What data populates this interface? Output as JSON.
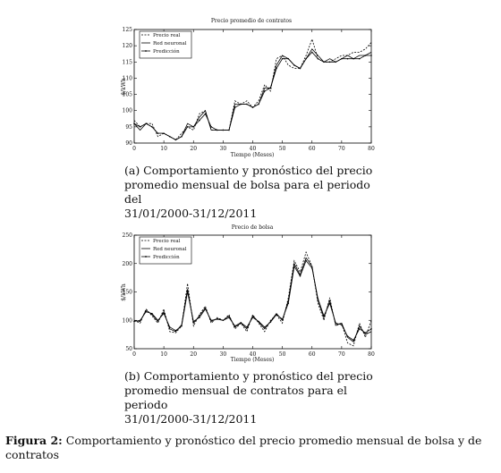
{
  "chart_data": [
    {
      "type": "line",
      "title": "Precio promedio de contratos",
      "xlabel": "Tiempo (Meses)",
      "ylabel": "$/kWh",
      "xlim": [
        0,
        80
      ],
      "ylim": [
        90,
        125
      ],
      "xticks": [
        0,
        10,
        20,
        30,
        40,
        50,
        60,
        70,
        80
      ],
      "yticks": [
        90,
        95,
        100,
        105,
        110,
        115,
        120,
        125
      ],
      "legend_position": "top-left",
      "x": [
        0,
        2,
        4,
        6,
        8,
        10,
        12,
        14,
        16,
        18,
        20,
        22,
        24,
        26,
        28,
        30,
        32,
        34,
        36,
        38,
        40,
        42,
        44,
        46,
        48,
        50,
        52,
        54,
        56,
        58,
        60,
        62,
        64,
        66,
        68,
        70,
        72,
        74,
        76,
        78,
        80
      ],
      "series": [
        {
          "name": "Precio real",
          "style": "dashed",
          "values": [
            97,
            95,
            96,
            96,
            92,
            93,
            92,
            91,
            93,
            95,
            94,
            99,
            100,
            94,
            94,
            94,
            94,
            103,
            102,
            103,
            101,
            103,
            108,
            106,
            116,
            117,
            114,
            113,
            113,
            117,
            122,
            116,
            115,
            115,
            116,
            117,
            117,
            118,
            118,
            119,
            121
          ]
        },
        {
          "name": "Red neuronal",
          "style": "solid",
          "values": [
            96,
            94,
            96,
            95,
            93,
            93,
            92,
            91,
            92,
            96,
            95,
            98,
            100,
            94,
            94,
            94,
            94,
            102,
            102,
            102,
            101,
            102,
            107,
            107,
            114,
            117,
            116,
            114,
            113,
            116,
            119,
            117,
            115,
            116,
            115,
            116,
            117,
            116,
            117,
            117,
            118
          ]
        },
        {
          "name": "Predicción",
          "style": "solid-marker",
          "values": [
            96,
            95,
            96,
            95,
            93,
            93,
            92,
            91,
            92,
            95,
            95,
            97,
            99,
            95,
            94,
            94,
            94,
            101,
            102,
            102,
            101,
            102,
            106,
            107,
            113,
            116,
            116,
            114,
            113,
            116,
            118,
            116,
            115,
            115,
            115,
            116,
            116,
            116,
            116,
            117,
            117
          ]
        }
      ]
    },
    {
      "type": "line",
      "title": "Precio de bolsa",
      "xlabel": "Tiempo (Meses)",
      "ylabel": "$/kWh",
      "xlim": [
        0,
        80
      ],
      "ylim": [
        50,
        250
      ],
      "xticks": [
        0,
        10,
        20,
        30,
        40,
        50,
        60,
        70,
        80
      ],
      "yticks": [
        50,
        100,
        150,
        200,
        250
      ],
      "legend_position": "top-left",
      "x": [
        0,
        2,
        4,
        6,
        8,
        10,
        12,
        14,
        16,
        18,
        20,
        22,
        24,
        26,
        28,
        30,
        32,
        34,
        36,
        38,
        40,
        42,
        44,
        46,
        48,
        50,
        52,
        54,
        56,
        58,
        60,
        62,
        64,
        66,
        68,
        70,
        72,
        74,
        76,
        78,
        80
      ],
      "series": [
        {
          "name": "Precio real",
          "style": "dashed",
          "values": [
            100,
            95,
            120,
            108,
            95,
            120,
            80,
            78,
            90,
            165,
            90,
            110,
            125,
            95,
            105,
            100,
            110,
            85,
            95,
            80,
            110,
            95,
            80,
            100,
            110,
            95,
            140,
            205,
            185,
            220,
            195,
            130,
            100,
            140,
            90,
            95,
            60,
            55,
            95,
            70,
            100
          ]
        },
        {
          "name": "Red neuronal",
          "style": "solid",
          "values": [
            100,
            98,
            118,
            110,
            98,
            115,
            85,
            80,
            92,
            155,
            95,
            108,
            122,
            98,
            103,
            100,
            108,
            88,
            95,
            85,
            108,
            97,
            85,
            98,
            112,
            100,
            135,
            200,
            180,
            210,
            195,
            135,
            105,
            135,
            92,
            95,
            70,
            62,
            90,
            75,
            80
          ]
        },
        {
          "name": "Predicción",
          "style": "solid-marker",
          "values": [
            98,
            100,
            115,
            112,
            100,
            112,
            88,
            82,
            90,
            150,
            98,
            105,
            120,
            100,
            102,
            100,
            105,
            90,
            96,
            88,
            105,
            98,
            88,
            97,
            110,
            102,
            130,
            195,
            178,
            205,
            192,
            138,
            108,
            130,
            95,
            92,
            72,
            65,
            85,
            78,
            85
          ]
        }
      ]
    }
  ],
  "captions": {
    "a": [
      "(a) Comportamiento y pronóstico del precio",
      "promedio mensual de bolsa para el periodo del",
      "31/01/2000-31/12/2011"
    ],
    "b": [
      "(b) Comportamiento y pronóstico del precio",
      "promedio mensual de contratos para el periodo",
      "31/01/2000-31/12/2011"
    ]
  },
  "figure_caption": {
    "label": "Figura 2:",
    "text": " Comportamiento y pronóstico del precio promedio mensual de bolsa y de contratos"
  }
}
